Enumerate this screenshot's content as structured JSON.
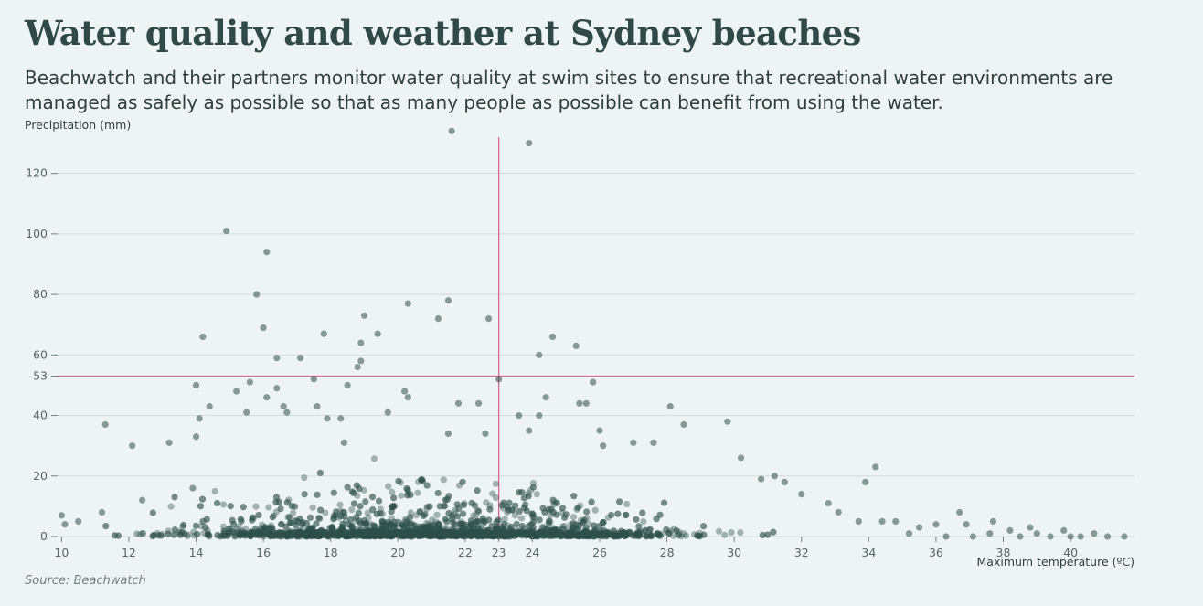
{
  "title": "Water quality and weather at Sydney beaches",
  "subtitle": "Beachwatch and their partners monitor water quality at swim sites to ensure that recreational water environments are managed as safely as possible so that as many people as possible can benefit from using the water.",
  "source": "Source: Beachwatch",
  "colors": {
    "points": "#2d4f4c",
    "reference_lines": "#d9668f",
    "gridlines": "#d2dbda",
    "background": "#eef4f3"
  },
  "chart_data": {
    "type": "scatter",
    "xlabel": "Maximum temperature (ºC)",
    "ylabel": "Precipitation (mm)",
    "xlim": [
      9.8,
      41.9
    ],
    "ylim": [
      0,
      135
    ],
    "x_ticks": [
      "10",
      "12",
      "14",
      "16",
      "18",
      "20",
      "22",
      "23",
      "24",
      "26",
      "28",
      "30",
      "32",
      "34",
      "36",
      "38",
      "40"
    ],
    "y_ticks": [
      "0",
      "20",
      "40",
      "53",
      "60",
      "80",
      "100",
      "120"
    ],
    "reference_lines": {
      "x": 23,
      "y": 53
    },
    "grid": "horizontal",
    "points": [
      [
        21.6,
        134
      ],
      [
        23.9,
        130
      ],
      [
        14.9,
        101
      ],
      [
        16.1,
        94
      ],
      [
        15.8,
        80
      ],
      [
        21.5,
        78
      ],
      [
        20.3,
        77
      ],
      [
        19,
        73
      ],
      [
        21.2,
        72
      ],
      [
        22.7,
        72
      ],
      [
        16,
        69
      ],
      [
        17.8,
        67
      ],
      [
        14.2,
        66
      ],
      [
        19.4,
        67
      ],
      [
        18.9,
        64
      ],
      [
        24.6,
        66
      ],
      [
        25.3,
        63
      ],
      [
        24.2,
        60
      ],
      [
        16.4,
        59
      ],
      [
        17.1,
        59
      ],
      [
        18.9,
        58
      ],
      [
        18.8,
        56
      ],
      [
        15.6,
        51
      ],
      [
        17.5,
        52
      ],
      [
        25.8,
        51
      ],
      [
        23,
        52
      ],
      [
        14,
        50
      ],
      [
        16.4,
        49
      ],
      [
        18.5,
        50
      ],
      [
        20.2,
        48
      ],
      [
        15.2,
        48
      ],
      [
        20.3,
        46
      ],
      [
        21.8,
        44
      ],
      [
        24.4,
        46
      ],
      [
        25.6,
        44
      ],
      [
        16.1,
        46
      ],
      [
        22.4,
        44
      ],
      [
        25.4,
        44
      ],
      [
        14.4,
        43
      ],
      [
        16.6,
        43
      ],
      [
        17.6,
        43
      ],
      [
        28.1,
        43
      ],
      [
        15.5,
        41
      ],
      [
        16.7,
        41
      ],
      [
        19.7,
        41
      ],
      [
        24.2,
        40
      ],
      [
        18.3,
        39
      ],
      [
        23.6,
        40
      ],
      [
        14.1,
        39
      ],
      [
        17.9,
        39
      ],
      [
        11.3,
        37
      ],
      [
        28.5,
        37
      ],
      [
        29.8,
        38
      ],
      [
        23.9,
        35
      ],
      [
        26,
        35
      ],
      [
        14,
        33
      ],
      [
        22.6,
        34
      ],
      [
        27.6,
        31
      ],
      [
        12.1,
        30
      ],
      [
        13.2,
        31
      ],
      [
        18.4,
        31
      ],
      [
        30.2,
        26
      ],
      [
        26.1,
        30
      ],
      [
        27,
        31
      ],
      [
        21.5,
        34
      ],
      [
        33.9,
        18
      ],
      [
        34.2,
        23
      ],
      [
        31.2,
        20
      ],
      [
        31.5,
        18
      ],
      [
        30.8,
        19
      ],
      [
        32,
        14
      ],
      [
        33.1,
        8
      ],
      [
        36.7,
        8
      ],
      [
        37.7,
        5
      ],
      [
        38.8,
        3
      ],
      [
        36.9,
        4
      ],
      [
        36,
        4
      ],
      [
        35.5,
        3
      ],
      [
        34.8,
        5
      ],
      [
        10,
        7
      ],
      [
        10.5,
        5
      ],
      [
        10.1,
        4
      ],
      [
        11.2,
        8
      ],
      [
        12.4,
        12
      ],
      [
        13.9,
        16
      ],
      [
        34.4,
        5
      ],
      [
        33.7,
        5
      ],
      [
        32.8,
        11
      ],
      [
        35.2,
        1
      ],
      [
        36.3,
        0
      ],
      [
        37.1,
        0
      ],
      [
        37.6,
        1
      ],
      [
        38.2,
        2
      ],
      [
        38.5,
        0
      ],
      [
        39,
        1
      ],
      [
        39.4,
        0
      ],
      [
        39.8,
        2
      ],
      [
        40.3,
        0
      ],
      [
        40.7,
        1
      ],
      [
        41.1,
        0
      ],
      [
        41.6,
        0
      ],
      [
        40,
        0
      ]
    ]
  }
}
